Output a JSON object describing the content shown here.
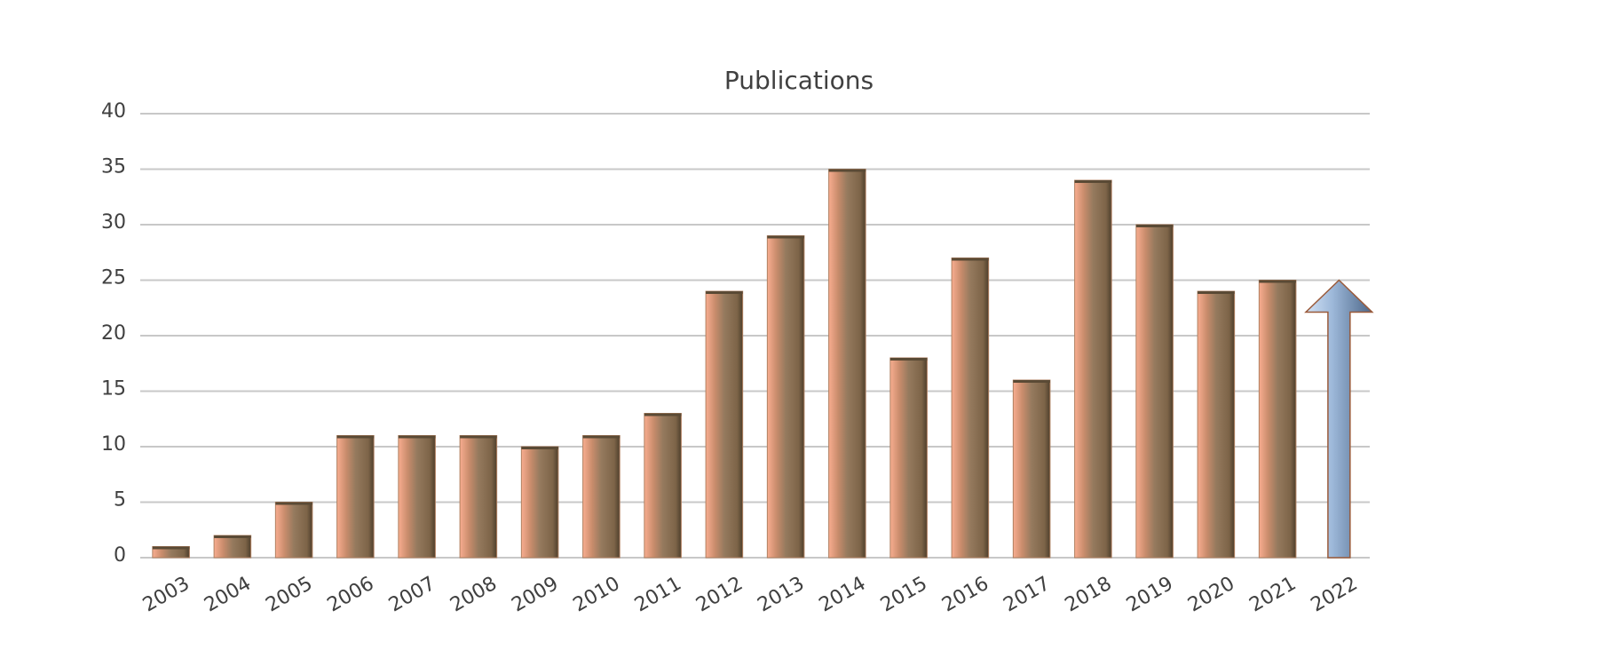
{
  "chart_data": {
    "type": "bar",
    "title": "Publications",
    "categories": [
      "2003",
      "2004",
      "2005",
      "2006",
      "2007",
      "2008",
      "2009",
      "2010",
      "2011",
      "2012",
      "2013",
      "2014",
      "2015",
      "2016",
      "2017",
      "2018",
      "2019",
      "2020",
      "2021",
      "2022"
    ],
    "values": [
      1,
      2,
      5,
      11,
      11,
      11,
      10,
      11,
      13,
      24,
      29,
      35,
      18,
      27,
      16,
      34,
      30,
      24,
      25,
      25
    ],
    "colors": [
      "#b08060",
      "#b08060",
      "#b08060",
      "#b08060",
      "#b08060",
      "#b08060",
      "#b08060",
      "#b08060",
      "#b08060",
      "#b08060",
      "#b08060",
      "#b08060",
      "#b08060",
      "#b08060",
      "#b08060",
      "#b08060",
      "#b08060",
      "#b08060",
      "#b08060",
      "#8aa8d0"
    ],
    "ylim": [
      0,
      40
    ],
    "yticks": [
      0,
      5,
      10,
      15,
      20,
      25,
      30,
      35,
      40
    ],
    "grid": true
  }
}
